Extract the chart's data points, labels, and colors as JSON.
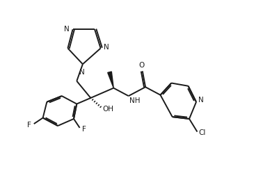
{
  "background_color": "#ffffff",
  "line_color": "#1a1a1a",
  "line_width": 1.4,
  "figsize": [
    3.78,
    2.59
  ],
  "dpi": 100,
  "xlim": [
    0.0,
    10.5
  ],
  "ylim": [
    0.5,
    9.5
  ]
}
